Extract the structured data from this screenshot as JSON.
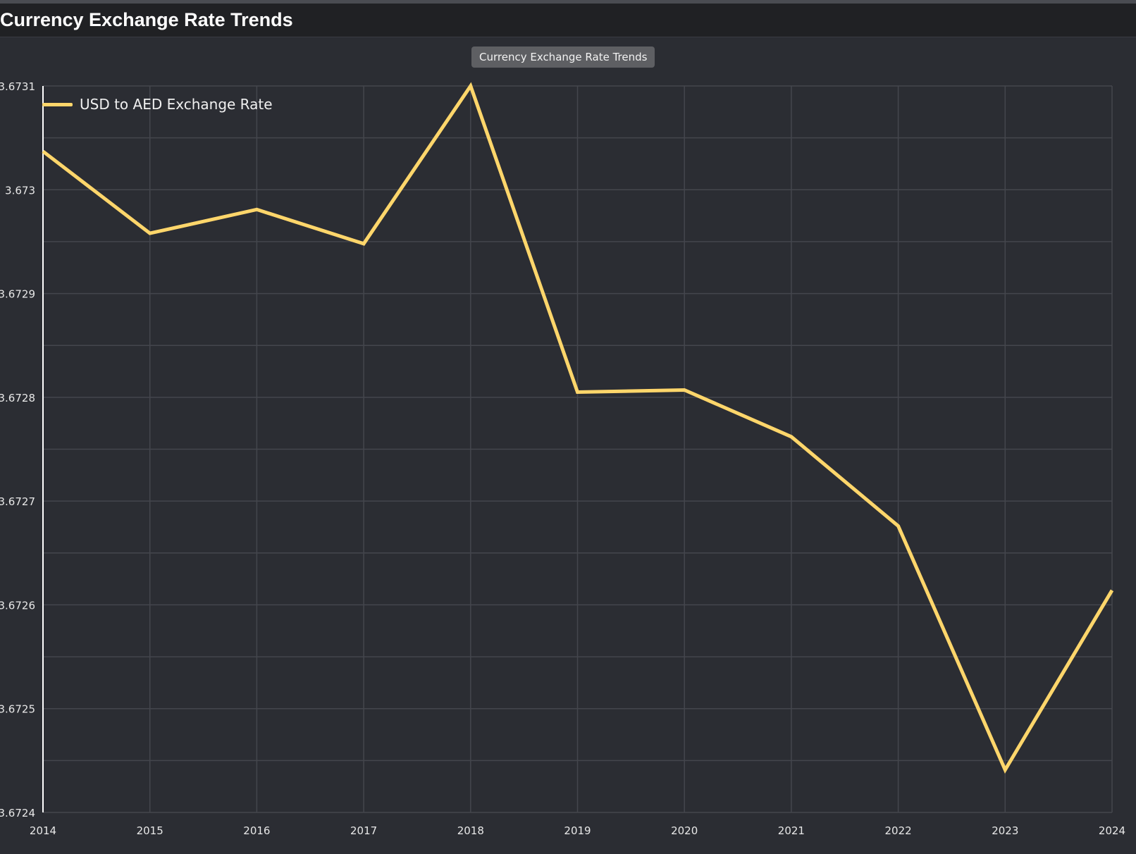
{
  "header": {
    "title": "Currency Exchange Rate Trends"
  },
  "tooltip": {
    "text": "Currency Exchange Rate Trends"
  },
  "colors": {
    "background": "#2b2d33",
    "header_background": "#202124",
    "grid": "#44464d",
    "axis": "#ffffff",
    "series": "#ffd66b"
  },
  "chart_data": {
    "type": "line",
    "x": [
      "2014",
      "2015",
      "2016",
      "2017",
      "2018",
      "2019",
      "2020",
      "2021",
      "2022",
      "2023",
      "2024"
    ],
    "series": [
      {
        "name": "USD to AED Exchange Rate",
        "values": [
          3.673037,
          3.672958,
          3.672981,
          3.672948,
          3.6731,
          3.672805,
          3.672807,
          3.672762,
          3.672676,
          3.672441,
          3.672614
        ]
      }
    ],
    "y_ticks": [
      "3.6724",
      "3.6725",
      "3.6726",
      "3.6727",
      "3.6728",
      "3.6729",
      "3.673",
      "3.6731"
    ],
    "ylim": [
      3.6724,
      3.6731
    ],
    "grid": true,
    "legend_position": "top-left"
  }
}
